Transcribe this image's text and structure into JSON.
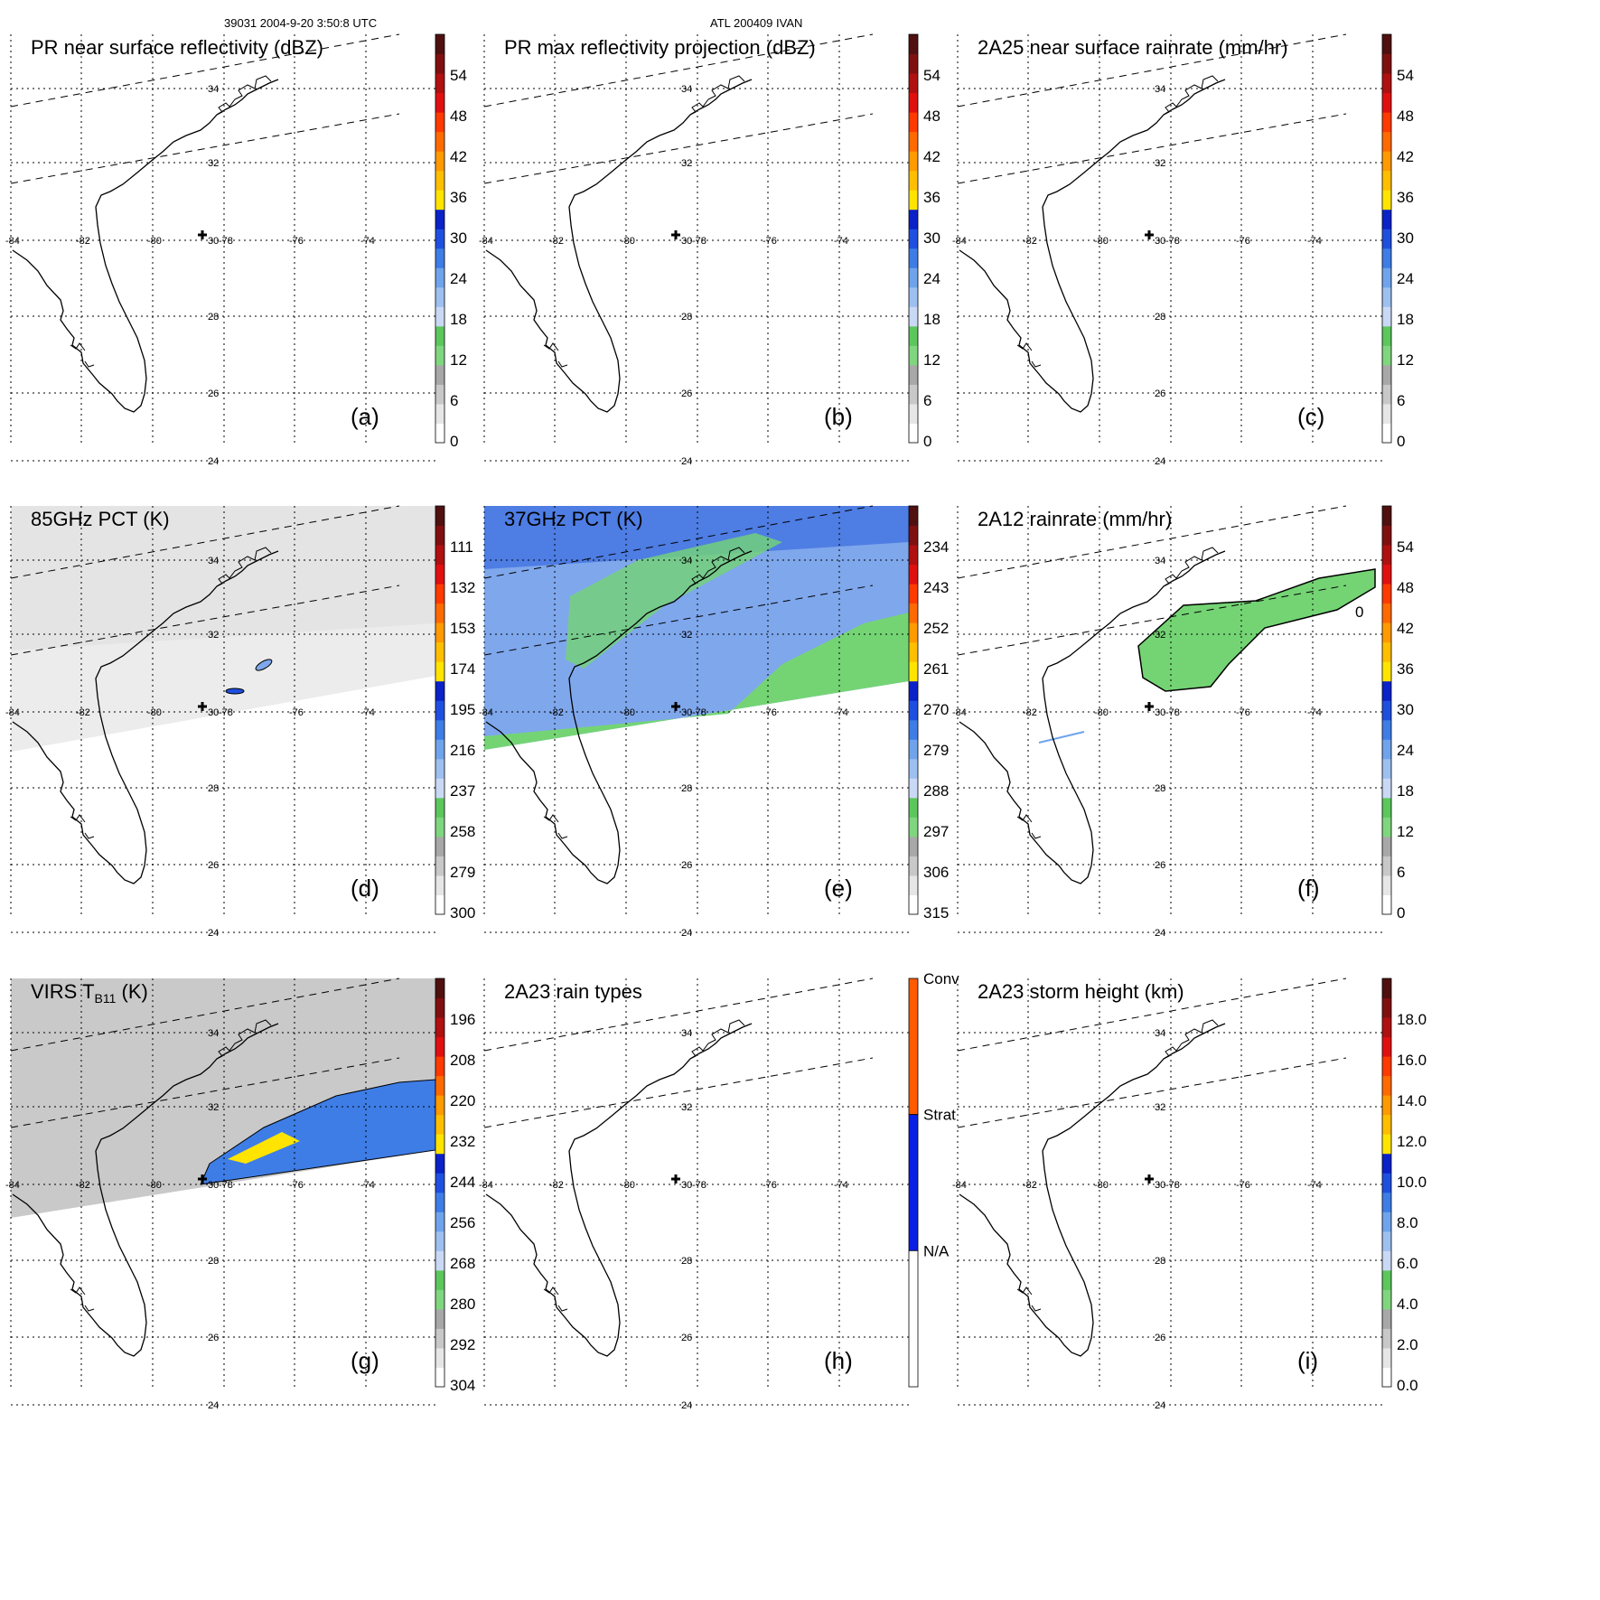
{
  "header": {
    "left": "39031 2004-9-20 3:50:8 UTC",
    "center": "ATL 200409 IVAN"
  },
  "map": {
    "lon_labels": [
      "-84",
      "-82",
      "-80",
      "-78",
      "-76",
      "-74"
    ],
    "lat_labels": [
      "34",
      "32",
      "30",
      "28",
      "26",
      "24"
    ]
  },
  "palette": {
    "rain": [
      "#ffffff",
      "#e6e6e6",
      "#c8c8c8",
      "#a8a8a8",
      "#7fd67f",
      "#5cc75c",
      "#c9d9f5",
      "#9dc0f0",
      "#6fa3ec",
      "#3e7de6",
      "#1f4fe0",
      "#0a22c8",
      "#ffe400",
      "#ffbf00",
      "#ff9a00",
      "#ff6a00",
      "#ff3a00",
      "#e01010",
      "#b01010",
      "#801010",
      "#501010"
    ],
    "gray_fill_light": "#e4e4e4",
    "gray_fill_mid": "#c9c9c9",
    "blue_fill": "#7fa7ec",
    "green_fill": "#74d474",
    "type_conv": "#ff5a00",
    "type_strat": "#0a1ee6",
    "type_na": "#ffffff"
  },
  "panels": [
    {
      "id": "a",
      "title": "PR near surface reflectivity (dBZ)",
      "label": "(a)",
      "scale": [
        "54",
        "48",
        "42",
        "36",
        "30",
        "24",
        "18",
        "12",
        "6",
        "0"
      ]
    },
    {
      "id": "b",
      "title": "PR max reflectivity projection (dBZ)",
      "label": "(b)",
      "scale": [
        "54",
        "48",
        "42",
        "36",
        "30",
        "24",
        "18",
        "12",
        "6",
        "0"
      ]
    },
    {
      "id": "c",
      "title": "2A25 near surface rainrate (mm/hr)",
      "label": "(c)",
      "scale": [
        "54",
        "48",
        "42",
        "36",
        "30",
        "24",
        "18",
        "12",
        "6",
        "0"
      ]
    },
    {
      "id": "d",
      "title": "85GHz PCT (K)",
      "label": "(d)",
      "scale": [
        "111",
        "132",
        "153",
        "174",
        "195",
        "216",
        "237",
        "258",
        "279",
        "300"
      ]
    },
    {
      "id": "e",
      "title": "37GHz PCT (K)",
      "label": "(e)",
      "scale": [
        "234",
        "243",
        "252",
        "261",
        "270",
        "279",
        "288",
        "297",
        "306",
        "315"
      ]
    },
    {
      "id": "f",
      "title": "2A12 rainrate (mm/hr)",
      "label": "(f)",
      "scale": [
        "54",
        "48",
        "42",
        "36",
        "30",
        "24",
        "18",
        "12",
        "6",
        "0"
      ],
      "contour_label": "0"
    },
    {
      "id": "g",
      "title": "VIRS T",
      "title_sub": "B11",
      "title_suffix": " (K)",
      "label": "(g)",
      "scale": [
        "196",
        "208",
        "220",
        "232",
        "244",
        "256",
        "268",
        "280",
        "292",
        "304"
      ]
    },
    {
      "id": "h",
      "title": "2A23 rain types",
      "label": "(h)",
      "type_labels": [
        "Conv",
        "Strat",
        "N/A"
      ]
    },
    {
      "id": "i",
      "title": "2A23 storm height (km)",
      "label": "(i)",
      "scale": [
        "18.0",
        "16.0",
        "14.0",
        "12.0",
        "10.0",
        "8.0",
        "6.0",
        "4.0",
        "2.0",
        "0.0"
      ]
    }
  ]
}
